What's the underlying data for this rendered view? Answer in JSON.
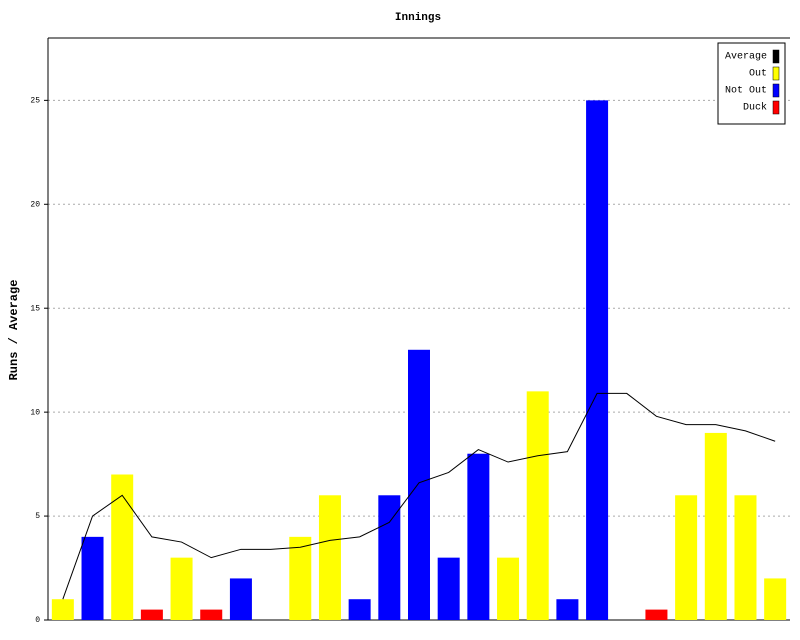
{
  "chart_data": {
    "type": "bar",
    "title": "Innings",
    "y_label": "Runs / Average",
    "categories": [
      null,
      null,
      null,
      null,
      null,
      null,
      null,
      null,
      null,
      null,
      null,
      null,
      null,
      null,
      null,
      null,
      null,
      null,
      null,
      null,
      null,
      null,
      null,
      null,
      null
    ],
    "series": [
      {
        "name": "Average",
        "type": "line",
        "color": "#000000",
        "values": [
          1,
          5,
          6,
          4,
          3.75,
          3,
          3.4,
          3.4,
          3.5,
          3.83,
          4,
          4.7,
          6.6,
          7.1,
          8.2,
          7.6,
          7.9,
          8.1,
          10.9,
          10.9,
          9.8,
          9.4,
          9.4,
          9.1,
          8.6
        ]
      },
      {
        "name": "Out",
        "type": "bar",
        "color": "#ffff00",
        "values": [
          1,
          null,
          7,
          null,
          3,
          null,
          null,
          null,
          4,
          6,
          null,
          null,
          null,
          null,
          null,
          3,
          11,
          null,
          null,
          null,
          null,
          6,
          9,
          6,
          2
        ]
      },
      {
        "name": "Not Out",
        "type": "bar",
        "color": "#0000ff",
        "values": [
          null,
          4,
          null,
          null,
          null,
          null,
          2,
          null,
          null,
          null,
          1,
          6,
          13,
          3,
          8,
          null,
          null,
          1,
          25,
          null,
          null,
          null,
          null,
          null,
          null
        ]
      },
      {
        "name": "Duck",
        "type": "bar",
        "color": "#ff0000",
        "values": [
          null,
          null,
          null,
          0.5,
          null,
          0.5,
          null,
          null,
          null,
          null,
          null,
          null,
          null,
          null,
          null,
          null,
          null,
          null,
          null,
          null,
          0.5,
          null,
          null,
          null,
          null
        ]
      }
    ],
    "ylim": [
      0,
      28
    ],
    "yticks": [
      0,
      5,
      10,
      15,
      20,
      25
    ],
    "grid": true,
    "legend": "top-right"
  }
}
